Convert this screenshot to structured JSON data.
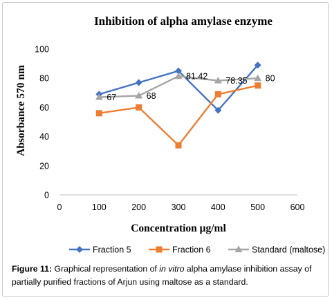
{
  "chart_data": {
    "type": "line",
    "title": "Inhibition of alpha amylase enzyme",
    "xlabel": "Concentration μg/ml",
    "ylabel": "Absorbance 570 nm",
    "xlim": [
      0,
      600
    ],
    "ylim": [
      0,
      100
    ],
    "x_ticks": [
      0,
      100,
      200,
      300,
      400,
      500,
      600
    ],
    "y_ticks": [
      0,
      20,
      40,
      60,
      80,
      100
    ],
    "x": [
      100,
      200,
      300,
      400,
      500
    ],
    "series": [
      {
        "name": "Fraction 5",
        "values": [
          69,
          77,
          85,
          58,
          89
        ],
        "color": "#4472c4",
        "marker": "diamond"
      },
      {
        "name": "Fraction 6",
        "values": [
          56,
          60,
          34,
          69,
          75
        ],
        "color": "#ed7d31",
        "marker": "square"
      },
      {
        "name": "Standard (maltose)",
        "values": [
          67,
          68,
          81.42,
          78.35,
          80
        ],
        "color": "#a5a5a5",
        "marker": "triangle",
        "data_labels": [
          "67",
          "68",
          "81.42",
          "78.35",
          "80"
        ]
      }
    ],
    "grid": false,
    "legend": "bottom"
  },
  "caption": {
    "label": "Figure 11:",
    "text_before": " Graphical representation of ",
    "italic": "in vitro",
    "text_after": " alpha amylase inhibition assay of partially purified fractions of Arjun using maltose as a standard."
  }
}
